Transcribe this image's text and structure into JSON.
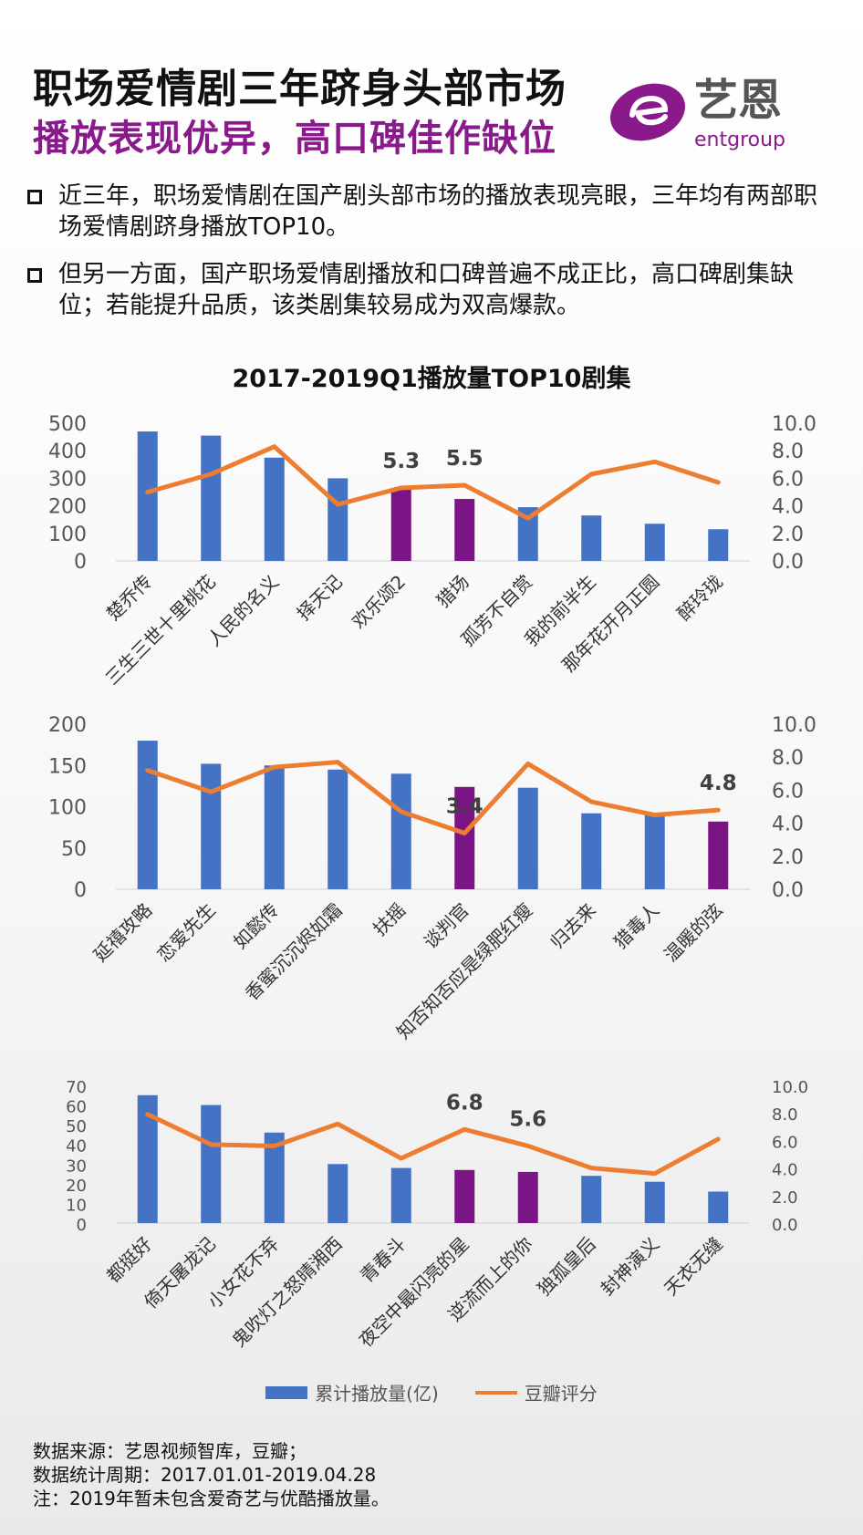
{
  "header": {
    "title_line1": "职场爱情剧三年跻身头部市场",
    "title_line2": "播放表现优异，高口碑佳作缺位"
  },
  "logo": {
    "cn": "艺恩",
    "en": "entgroup",
    "colors": {
      "purple": "#8a1a8c",
      "gray": "#555555"
    }
  },
  "bullets": [
    "近三年，职场爱情剧在国产剧头部市场的播放表现亮眼，三年均有两部职场爱情剧跻身播放TOP10。",
    "但另一方面，国产职场爱情剧播放和口碑普遍不成正比，高口碑剧集缺位；若能提升品质，该类剧集较易成为双高爆款。"
  ],
  "chart_title": "2017-2019Q1播放量TOP10剧集",
  "colors": {
    "bar": "#4472c4",
    "highlight": "#7b1585",
    "line": "#ed7d31"
  },
  "chart_data": [
    {
      "type": "bar+line",
      "categories": [
        "楚乔传",
        "三生三世十里桃花",
        "人民的名义",
        "择天记",
        "欢乐颂2",
        "猎场",
        "孤芳不自赏",
        "我的前半生",
        "那年花开月正圆",
        "醉玲珑"
      ],
      "series": [
        {
          "name": "累计播放量(亿)",
          "type": "bar",
          "axis": "left",
          "values": [
            470,
            455,
            375,
            300,
            265,
            225,
            195,
            165,
            135,
            115
          ]
        },
        {
          "name": "豆瓣评分",
          "type": "line",
          "axis": "right",
          "values": [
            5.0,
            6.3,
            8.3,
            4.1,
            5.3,
            5.5,
            3.1,
            6.3,
            7.2,
            5.7
          ]
        }
      ],
      "highlight_indices": [
        4,
        5
      ],
      "data_labels": [
        {
          "index": 4,
          "text": "5.3"
        },
        {
          "index": 5,
          "text": "5.5"
        }
      ],
      "y_left": {
        "min": 0,
        "max": 500,
        "ticks": [
          "0",
          "100",
          "200",
          "300",
          "400",
          "500"
        ]
      },
      "y_right": {
        "min": 0,
        "max": 10,
        "ticks": [
          "0.0",
          "2.0",
          "4.0",
          "6.0",
          "8.0",
          "10.0"
        ]
      }
    },
    {
      "type": "bar+line",
      "categories": [
        "延禧攻略",
        "恋爱先生",
        "如懿传",
        "香蜜沉沉烬如霜",
        "扶摇",
        "谈判官",
        "知否知否应是绿肥红瘦",
        "归去来",
        "猎毒人",
        "温暖的弦"
      ],
      "series": [
        {
          "name": "累计播放量(亿)",
          "type": "bar",
          "axis": "left",
          "values": [
            180,
            152,
            150,
            145,
            140,
            124,
            123,
            92,
            92,
            82
          ]
        },
        {
          "name": "豆瓣评分",
          "type": "line",
          "axis": "right",
          "values": [
            7.2,
            5.9,
            7.4,
            7.7,
            4.7,
            3.4,
            7.6,
            5.3,
            4.5,
            4.8
          ]
        }
      ],
      "highlight_indices": [
        5,
        9
      ],
      "data_labels": [
        {
          "index": 5,
          "text": "3.4"
        },
        {
          "index": 9,
          "text": "4.8"
        }
      ],
      "y_left": {
        "min": 0,
        "max": 200,
        "ticks": [
          "0",
          "50",
          "100",
          "150",
          "200"
        ]
      },
      "y_right": {
        "min": 0,
        "max": 10,
        "ticks": [
          "0.0",
          "2.0",
          "4.0",
          "6.0",
          "8.0",
          "10.0"
        ]
      }
    },
    {
      "type": "bar+line",
      "categories": [
        "都挺好",
        "倚天屠龙记",
        "小女花不弃",
        "鬼吹灯之怒晴湘西",
        "青春斗",
        "夜空中最闪亮的星",
        "逆流而上的你",
        "独孤皇后",
        "封神演义",
        "天衣无缝"
      ],
      "series": [
        {
          "name": "累计播放量(亿)",
          "type": "bar",
          "axis": "left",
          "values": [
            65,
            60,
            46,
            30,
            28,
            27,
            26,
            24,
            21,
            16
          ]
        },
        {
          "name": "豆瓣评分",
          "type": "line",
          "axis": "right",
          "values": [
            7.9,
            5.7,
            5.6,
            7.2,
            4.7,
            6.8,
            5.6,
            4.0,
            3.6,
            6.1
          ]
        }
      ],
      "highlight_indices": [
        5,
        6
      ],
      "data_labels": [
        {
          "index": 5,
          "text": "6.8"
        },
        {
          "index": 6,
          "text": "5.6"
        }
      ],
      "y_left": {
        "min": 0,
        "max": 70,
        "ticks": [
          "0",
          "10",
          "20",
          "30",
          "40",
          "50",
          "60",
          "70"
        ]
      },
      "y_right": {
        "min": 0,
        "max": 10,
        "ticks": [
          "0.0",
          "2.0",
          "4.0",
          "6.0",
          "8.0",
          "10.0"
        ]
      }
    }
  ],
  "legend": {
    "bar_label": "累计播放量(亿)",
    "line_label": "豆瓣评分"
  },
  "footer": [
    "数据来源：艺恩视频智库，豆瓣；",
    "数据统计周期：2017.01.01-2019.04.28",
    "注：2019年暂未包含爱奇艺与优酷播放量。"
  ]
}
